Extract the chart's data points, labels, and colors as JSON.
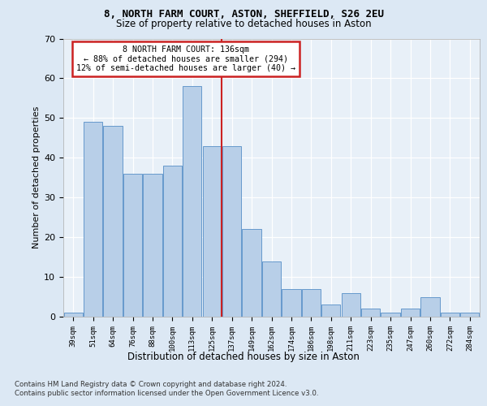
{
  "title1": "8, NORTH FARM COURT, ASTON, SHEFFIELD, S26 2EU",
  "title2": "Size of property relative to detached houses in Aston",
  "xlabel": "Distribution of detached houses by size in Aston",
  "ylabel": "Number of detached properties",
  "bar_labels": [
    "39sqm",
    "51sqm",
    "64sqm",
    "76sqm",
    "88sqm",
    "100sqm",
    "113sqm",
    "125sqm",
    "137sqm",
    "149sqm",
    "162sqm",
    "174sqm",
    "186sqm",
    "198sqm",
    "211sqm",
    "223sqm",
    "235sqm",
    "247sqm",
    "260sqm",
    "272sqm",
    "284sqm"
  ],
  "bar_values": [
    1,
    49,
    48,
    36,
    36,
    38,
    58,
    43,
    43,
    22,
    14,
    7,
    7,
    3,
    6,
    2,
    1,
    2,
    5,
    1,
    1
  ],
  "bar_color": "#b8cfe8",
  "bar_edge_color": "#6699cc",
  "vline_color": "#cc2222",
  "annotation_text": "8 NORTH FARM COURT: 136sqm\n← 88% of detached houses are smaller (294)\n12% of semi-detached houses are larger (40) →",
  "annotation_box_edgecolor": "#cc2222",
  "annotation_fill": "#ffffff",
  "ylim": [
    0,
    70
  ],
  "yticks": [
    0,
    10,
    20,
    30,
    40,
    50,
    60,
    70
  ],
  "footer1": "Contains HM Land Registry data © Crown copyright and database right 2024.",
  "footer2": "Contains public sector information licensed under the Open Government Licence v3.0.",
  "bg_color": "#dce8f4",
  "plot_bg_color": "#e8f0f8",
  "grid_color": "#ffffff"
}
